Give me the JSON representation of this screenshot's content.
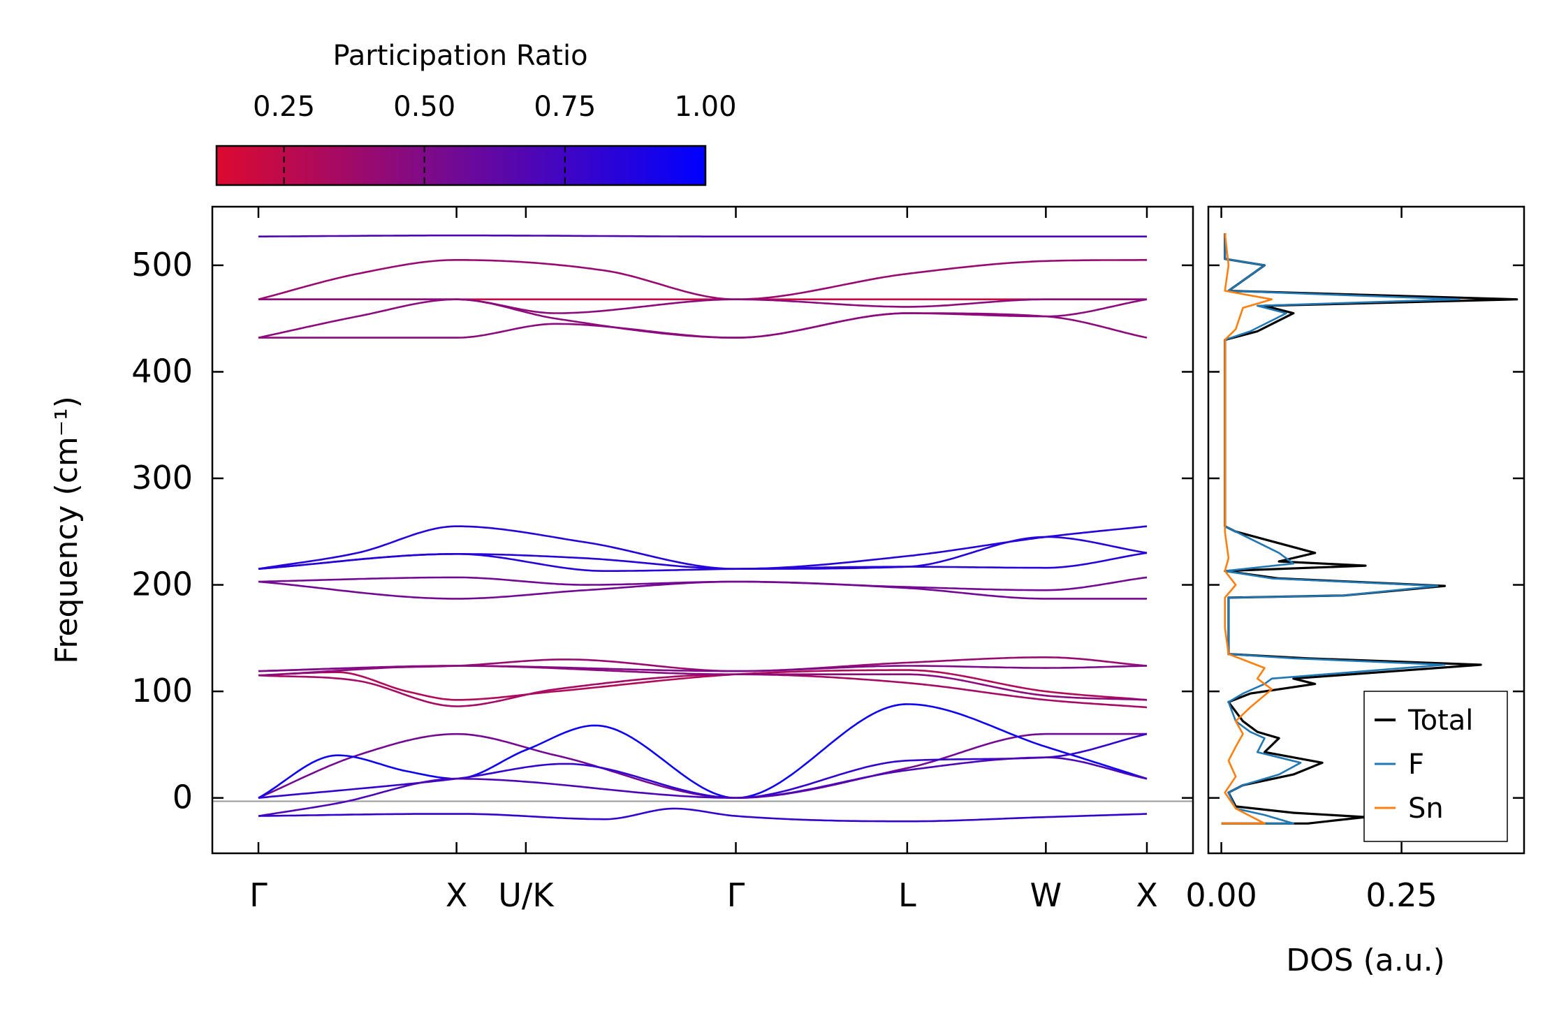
{
  "chart_data": [
    {
      "type": "line",
      "name": "phonon-band-structure",
      "ylabel": "Frequency (cm⁻¹)",
      "ylim": [
        -52,
        555
      ],
      "yticks": [
        0,
        100,
        200,
        300,
        400,
        500
      ],
      "ytick_labels": [
        "0",
        "100",
        "200",
        "300",
        "400",
        "500"
      ],
      "xlim": [
        0,
        8.97
      ],
      "high_symmetry_points": [
        {
          "label": "Γ",
          "x": 0
        },
        {
          "label": "X",
          "x": 2
        },
        {
          "label": "U/K",
          "x": 2.7
        },
        {
          "label": "Γ",
          "x": 4.82
        },
        {
          "label": "L",
          "x": 6.55
        },
        {
          "label": "W",
          "x": 7.95
        },
        {
          "label": "X",
          "x": 8.97
        }
      ],
      "colorbar": {
        "title": "Participation Ratio",
        "range": [
          0.13,
          1.0
        ],
        "ticks": [
          0.25,
          0.5,
          0.75,
          1.0
        ],
        "tick_labels": [
          "0.25",
          "0.50",
          "0.75",
          "1.00"
        ],
        "color_low": "#dc0a30",
        "color_mid": "#7a0a8c",
        "color_high": "#0000ff"
      },
      "series": [
        {
          "name": "band-1",
          "pr": 0.7,
          "x": [
            0,
            2,
            4.82,
            6.55,
            7.95,
            8.97
          ],
          "y": [
            527,
            528,
            527,
            527,
            527,
            527
          ]
        },
        {
          "name": "band-2",
          "pr": 0.4,
          "x": [
            0,
            1,
            2,
            3.5,
            4.82,
            6.55,
            7.95,
            8.97
          ],
          "y": [
            468,
            492,
            505,
            495,
            468,
            492,
            504,
            505
          ]
        },
        {
          "name": "band-3",
          "pr": 0.2,
          "x": [
            0,
            2,
            4.82,
            6.55,
            7.95,
            8.97
          ],
          "y": [
            468,
            468,
            468,
            468,
            468,
            468
          ]
        },
        {
          "name": "band-4",
          "pr": 0.45,
          "x": [
            0,
            1,
            2,
            3,
            4.82,
            6.55,
            7.95,
            8.97
          ],
          "y": [
            468,
            468,
            468,
            455,
            468,
            461,
            468,
            468
          ]
        },
        {
          "name": "band-5",
          "pr": 0.45,
          "x": [
            0,
            1,
            2,
            3,
            4.82,
            6.55,
            7.95,
            8.97
          ],
          "y": [
            432,
            452,
            468,
            450,
            432,
            455,
            452,
            468
          ]
        },
        {
          "name": "band-6",
          "pr": 0.45,
          "x": [
            0,
            2,
            3,
            4.82,
            6.55,
            7.95,
            8.97
          ],
          "y": [
            432,
            432,
            445,
            432,
            455,
            452,
            432
          ]
        },
        {
          "name": "band-7",
          "pr": 0.85,
          "x": [
            0,
            1,
            2,
            3.3,
            4.82,
            6.55,
            7.95,
            8.97
          ],
          "y": [
            215,
            230,
            255,
            240,
            215,
            227,
            245,
            255
          ]
        },
        {
          "name": "band-8",
          "pr": 0.85,
          "x": [
            0,
            2,
            3.3,
            4.82,
            6.55,
            7.95,
            8.97
          ],
          "y": [
            215,
            229,
            225,
            215,
            217,
            245,
            230
          ]
        },
        {
          "name": "band-9",
          "pr": 0.85,
          "x": [
            0,
            2,
            3.5,
            4.82,
            6.55,
            7.95,
            8.97
          ],
          "y": [
            215,
            229,
            213,
            215,
            217,
            216,
            230
          ]
        },
        {
          "name": "band-10",
          "pr": 0.55,
          "x": [
            0,
            2,
            3.3,
            4.82,
            6.55,
            7.95,
            8.97
          ],
          "y": [
            203,
            207,
            200,
            203,
            198,
            195,
            207
          ]
        },
        {
          "name": "band-11",
          "pr": 0.55,
          "x": [
            0,
            2,
            3.3,
            4.82,
            6.55,
            7.95,
            8.97
          ],
          "y": [
            203,
            187,
            195,
            203,
            197,
            187,
            187
          ]
        },
        {
          "name": "band-12",
          "pr": 0.4,
          "x": [
            0,
            1,
            2,
            3.1,
            4.82,
            6.55,
            7.95,
            8.97
          ],
          "y": [
            119,
            122,
            124,
            130,
            119,
            127,
            132,
            124
          ]
        },
        {
          "name": "band-13",
          "pr": 0.3,
          "x": [
            0,
            0.8,
            1.5,
            2,
            3,
            4.82,
            6.55,
            7.95,
            8.97
          ],
          "y": [
            115,
            118,
            100,
            92,
            100,
            116,
            120,
            100,
            92
          ]
        },
        {
          "name": "band-14",
          "pr": 0.35,
          "x": [
            0,
            1,
            2,
            3,
            4.82,
            6.55,
            7.95,
            8.97
          ],
          "y": [
            115,
            110,
            86,
            102,
            116,
            108,
            92,
            85
          ]
        },
        {
          "name": "band-15",
          "pr": 0.5,
          "x": [
            0,
            2,
            4.82,
            6.55,
            7.95,
            8.97
          ],
          "y": [
            119,
            124,
            119,
            124,
            122,
            124
          ]
        },
        {
          "name": "band-16",
          "pr": 0.45,
          "x": [
            0,
            2,
            4.82,
            6.55,
            7.95,
            8.97
          ],
          "y": [
            115,
            124,
            116,
            116,
            96,
            92
          ]
        },
        {
          "name": "band-17",
          "pr": 0.55,
          "x": [
            0,
            1,
            2,
            3,
            4.82,
            6.55,
            7.95,
            8.97
          ],
          "y": [
            0,
            40,
            60,
            40,
            0,
            28,
            60,
            60
          ]
        },
        {
          "name": "band-18",
          "pr": 0.95,
          "x": [
            0,
            0.8,
            1.5,
            2,
            2.7,
            3.4,
            4.82,
            6.55,
            7.95,
            8.97
          ],
          "y": [
            0,
            40,
            25,
            18,
            45,
            68,
            0,
            88,
            48,
            18
          ]
        },
        {
          "name": "band-19",
          "pr": 0.8,
          "x": [
            0,
            2,
            3.1,
            4.82,
            6.55,
            7.95,
            8.97
          ],
          "y": [
            0,
            18,
            32,
            0,
            35,
            38,
            60
          ]
        },
        {
          "name": "band-20",
          "pr": 0.7,
          "x": [
            0,
            0.8,
            2,
            4.82,
            6.55,
            7.95,
            8.97
          ],
          "y": [
            -17,
            -5,
            18,
            0,
            26,
            38,
            18
          ]
        },
        {
          "name": "band-21",
          "pr": 0.8,
          "x": [
            0,
            1.8,
            2.05,
            3.5,
            4.2,
            4.82,
            6.55,
            7.95,
            8.97
          ],
          "y": [
            -17,
            -15,
            -15,
            -20,
            -10,
            -17,
            -22,
            -18,
            -15
          ]
        }
      ]
    },
    {
      "type": "line",
      "name": "density-of-states",
      "xlabel": "DOS (a.u.)",
      "xlim": [
        -0.018,
        0.42
      ],
      "xticks": [
        0.0,
        0.25
      ],
      "xtick_labels": [
        "0.00",
        "0.25"
      ],
      "ylim": [
        -52,
        555
      ],
      "legend_position": "lower-right",
      "series": [
        {
          "name": "Total",
          "color": "#000000",
          "points": [
            [
              0,
              -24
            ],
            [
              0.12,
              -24
            ],
            [
              0.2,
              -18
            ],
            [
              0.1,
              -14
            ],
            [
              0.02,
              -8
            ],
            [
              0.01,
              5
            ],
            [
              0.03,
              12
            ],
            [
              0.1,
              22
            ],
            [
              0.14,
              33
            ],
            [
              0.1,
              38
            ],
            [
              0.06,
              43
            ],
            [
              0.08,
              56
            ],
            [
              0.05,
              62
            ],
            [
              0.03,
              72
            ],
            [
              0.01,
              90
            ],
            [
              0.04,
              98
            ],
            [
              0.13,
              107
            ],
            [
              0.1,
              112
            ],
            [
              0.36,
              125
            ],
            [
              0.12,
              131
            ],
            [
              0.01,
              135
            ],
            [
              0.01,
              160
            ],
            [
              0.01,
              188
            ],
            [
              0.17,
              190
            ],
            [
              0.31,
              199
            ],
            [
              0.08,
              206
            ],
            [
              0.005,
              213
            ],
            [
              0.2,
              218
            ],
            [
              0.08,
              222
            ],
            [
              0.13,
              230
            ],
            [
              0.02,
              250
            ],
            [
              0.005,
              255
            ],
            [
              0.005,
              430
            ],
            [
              0.05,
              438
            ],
            [
              0.1,
              455
            ],
            [
              0.06,
              462
            ],
            [
              0.41,
              468
            ],
            [
              0.01,
              476
            ],
            [
              0.06,
              500
            ],
            [
              0.005,
              506
            ],
            [
              0.005,
              530
            ]
          ]
        },
        {
          "name": "F",
          "color": "#1f77b4",
          "points": [
            [
              0,
              -24
            ],
            [
              0.1,
              -24
            ],
            [
              0.06,
              -16
            ],
            [
              0.02,
              -10
            ],
            [
              0.01,
              5
            ],
            [
              0.03,
              12
            ],
            [
              0.08,
              22
            ],
            [
              0.11,
              33
            ],
            [
              0.08,
              38
            ],
            [
              0.05,
              43
            ],
            [
              0.06,
              56
            ],
            [
              0.04,
              62
            ],
            [
              0.02,
              72
            ],
            [
              0.01,
              90
            ],
            [
              0.03,
              98
            ],
            [
              0.06,
              107
            ],
            [
              0.07,
              112
            ],
            [
              0.31,
              125
            ],
            [
              0.1,
              131
            ],
            [
              0.01,
              135
            ],
            [
              0.01,
              160
            ],
            [
              0.01,
              188
            ],
            [
              0.17,
              190
            ],
            [
              0.3,
              199
            ],
            [
              0.07,
              206
            ],
            [
              0.005,
              213
            ],
            [
              0.1,
              220
            ],
            [
              0.08,
              230
            ],
            [
              0.02,
              250
            ],
            [
              0.005,
              255
            ],
            [
              0.005,
              430
            ],
            [
              0.04,
              438
            ],
            [
              0.09,
              455
            ],
            [
              0.05,
              462
            ],
            [
              0.33,
              468
            ],
            [
              0.01,
              476
            ],
            [
              0.06,
              500
            ],
            [
              0.005,
              506
            ],
            [
              0.005,
              530
            ]
          ]
        },
        {
          "name": "Sn",
          "color": "#ff7f0e",
          "points": [
            [
              0,
              -24
            ],
            [
              0.06,
              -24
            ],
            [
              0.02,
              -10
            ],
            [
              0.005,
              5
            ],
            [
              0.02,
              20
            ],
            [
              0.01,
              35
            ],
            [
              0.02,
              48
            ],
            [
              0.03,
              60
            ],
            [
              0.02,
              72
            ],
            [
              0.04,
              85
            ],
            [
              0.07,
              102
            ],
            [
              0.05,
              112
            ],
            [
              0.06,
              122
            ],
            [
              0.01,
              135
            ],
            [
              0.005,
              160
            ],
            [
              0.005,
              188
            ],
            [
              0.02,
              200
            ],
            [
              0.005,
              213
            ],
            [
              0.01,
              225
            ],
            [
              0.005,
              250
            ],
            [
              0.005,
              430
            ],
            [
              0.02,
              440
            ],
            [
              0.03,
              460
            ],
            [
              0.07,
              468
            ],
            [
              0.005,
              476
            ],
            [
              0.01,
              500
            ],
            [
              0.005,
              530
            ]
          ]
        }
      ]
    }
  ]
}
